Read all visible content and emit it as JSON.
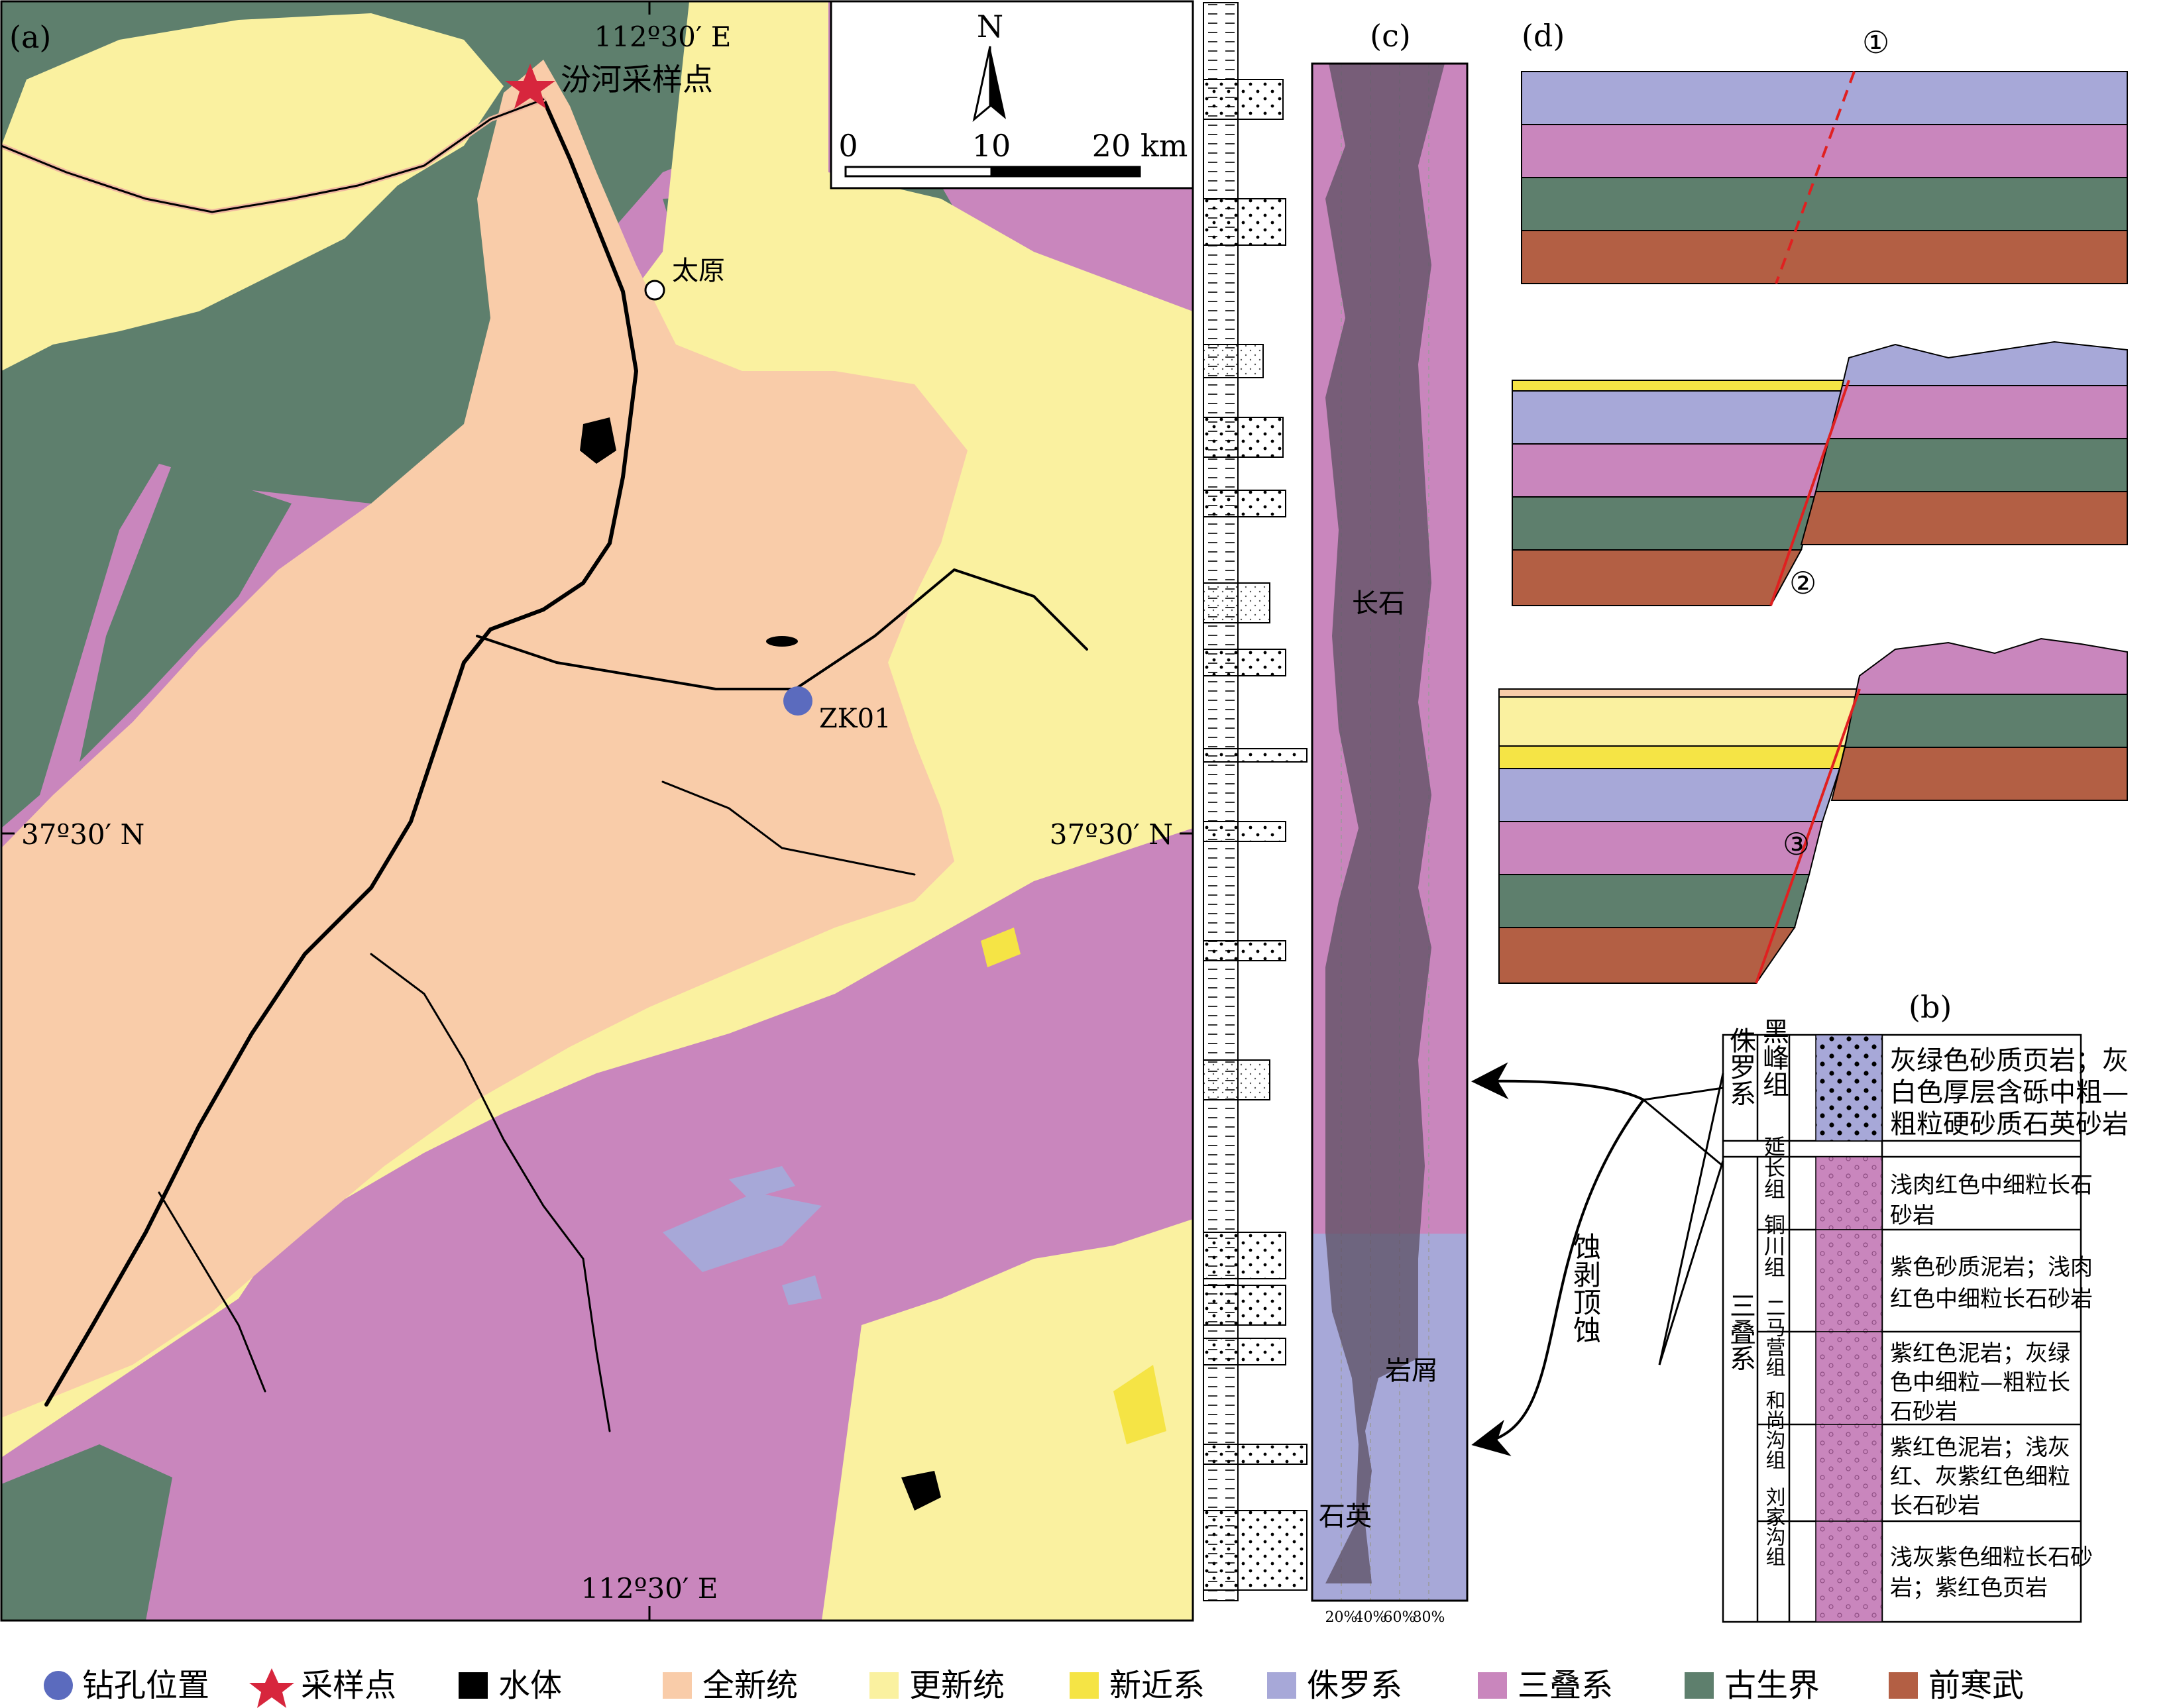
{
  "panels": {
    "a": {
      "label": "(a)"
    },
    "b": {
      "label": "(b)"
    },
    "c": {
      "label": "(c)"
    },
    "d": {
      "label": "(d)"
    }
  },
  "map": {
    "lon_top": "112º30′ E",
    "lon_bottom": "112º30′ E",
    "lat_left": "37º30′ N",
    "lat_right": "37º30′ N",
    "north": "N",
    "scale": {
      "t0": "0",
      "t1": "10",
      "t2": "20 km"
    },
    "sample_point": "汾河采样点",
    "city": "太原",
    "borehole": "ZK01"
  },
  "colors": {
    "holocene": "#F9CCA9",
    "pleistocene": "#FAF1A0",
    "neogene": "#F5E445",
    "jurassic": "#A7A8D8",
    "triassic": "#C986BD",
    "paleozoic": "#5E7F6D",
    "precambrian": "#B35F44",
    "water": "#000000",
    "borehole": "#5B6BBE",
    "sample": "#D7263D"
  },
  "column_c": {
    "feldspar": "长石",
    "lithic": "岩屑",
    "quartz": "石英",
    "axis_ticks": [
      "20%",
      "40%",
      "60%",
      "80%"
    ]
  },
  "strat_b": {
    "jurassic": {
      "system": "侏罗系",
      "formation": "黑峰组",
      "lines": [
        "灰绿色砂质页岩；灰",
        "白色厚层含砾中粗—",
        "粗粒硬砂质石英砂岩"
      ]
    },
    "triassic_system": "三叠系",
    "formations": [
      {
        "name": "延长组",
        "lines": [
          "浅肉红色中细粒长石",
          "砂岩"
        ]
      },
      {
        "name": "铜川组",
        "lines": [
          "紫色砂质泥岩；浅肉",
          "红色中细粒长石砂岩"
        ]
      },
      {
        "name": "二马营组",
        "lines": [
          "紫红色泥岩；灰绿",
          "色中细粒—粗粒长",
          "石砂岩"
        ]
      },
      {
        "name": "和尚沟组",
        "lines": [
          "紫红色泥岩；浅灰",
          "红、灰紫红色细粒",
          "长石砂岩"
        ]
      },
      {
        "name": "刘家沟组",
        "lines": [
          "浅灰紫色细粒长石砂",
          "岩；紫红色页岩"
        ]
      }
    ]
  },
  "panel_d": {
    "n1": "①",
    "n2": "②",
    "n3": "③"
  },
  "erosion": "蚀剥顶蚀",
  "legend": [
    {
      "key": "borehole",
      "label": "钻孔位置"
    },
    {
      "key": "sample",
      "label": "采样点"
    },
    {
      "key": "water",
      "label": "水体"
    },
    {
      "key": "holocene",
      "label": "全新统"
    },
    {
      "key": "pleistocene",
      "label": "更新统"
    },
    {
      "key": "neogene",
      "label": "新近系"
    },
    {
      "key": "jurassic",
      "label": "侏罗系"
    },
    {
      "key": "triassic",
      "label": "三叠系"
    },
    {
      "key": "paleozoic",
      "label": "古生界"
    },
    {
      "key": "precambrian",
      "label": "前寒武"
    }
  ]
}
